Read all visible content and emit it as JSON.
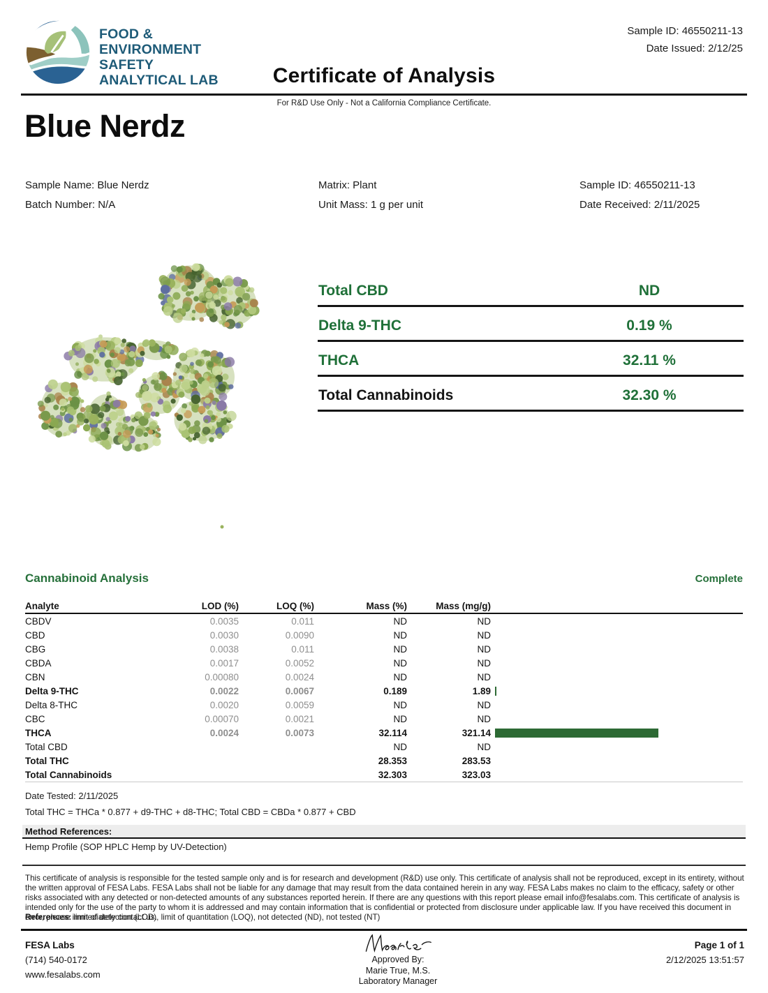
{
  "colors": {
    "accent_green": "#26703a",
    "bar_green": "#2d6a34",
    "logo_text_blue": "#1e5b78"
  },
  "header": {
    "sample_id": "Sample ID: 46550211-13",
    "date_issued": "Date Issued: 2/12/25",
    "title": "Certificate of Analysis",
    "subtitle": "For R&D Use Only - Not a California Compliance Certificate.",
    "logo_lines": [
      "FOOD &",
      "ENVIRONMENT",
      "SAFETY",
      "ANALYTICAL LAB"
    ]
  },
  "product_name": "Blue Nerdz",
  "sample_info": {
    "column1": [
      "Sample Name: Blue Nerdz",
      "Batch Number: N/A"
    ],
    "column2": [
      "Matrix: Plant",
      "Unit Mass: 1 g per unit"
    ],
    "column3": [
      "Sample ID: 46550211-13",
      "Date Received: 2/11/2025"
    ]
  },
  "summary": {
    "rows": [
      {
        "label": "Total CBD",
        "value": "ND"
      },
      {
        "label": "Delta 9-THC",
        "value": "0.19 %"
      },
      {
        "label": "THCA",
        "value": "32.11 %"
      },
      {
        "label": "Total Cannabinoids",
        "value": "32.30 %"
      }
    ]
  },
  "cannabinoid_table": {
    "section_title": "Cannabinoid Analysis",
    "status": "Complete",
    "headers": [
      "Analyte",
      "LOD (%)",
      "LOQ (%)",
      "Mass (%)",
      "Mass (mg/g)"
    ],
    "rows": [
      {
        "analyte": "CBDV",
        "lod": "0.0035",
        "loq": "0.011",
        "mass_pct": "ND",
        "mass_mgg": "ND",
        "bold": false,
        "bar": false
      },
      {
        "analyte": "CBD",
        "lod": "0.0030",
        "loq": "0.0090",
        "mass_pct": "ND",
        "mass_mgg": "ND",
        "bold": false,
        "bar": false
      },
      {
        "analyte": "CBG",
        "lod": "0.0038",
        "loq": "0.011",
        "mass_pct": "ND",
        "mass_mgg": "ND",
        "bold": false,
        "bar": false
      },
      {
        "analyte": "CBDA",
        "lod": "0.0017",
        "loq": "0.0052",
        "mass_pct": "ND",
        "mass_mgg": "ND",
        "bold": false,
        "bar": false
      },
      {
        "analyte": "CBN",
        "lod": "0.00080",
        "loq": "0.0024",
        "mass_pct": "ND",
        "mass_mgg": "ND",
        "bold": false,
        "bar": false
      },
      {
        "analyte": "Delta 9-THC",
        "lod": "0.0022",
        "loq": "0.0067",
        "mass_pct": "0.189",
        "mass_mgg": "1.89",
        "bold": true,
        "bar": true
      },
      {
        "analyte": "Delta 8-THC",
        "lod": "0.0020",
        "loq": "0.0059",
        "mass_pct": "ND",
        "mass_mgg": "ND",
        "bold": false,
        "bar": false
      },
      {
        "analyte": "CBC",
        "lod": "0.00070",
        "loq": "0.0021",
        "mass_pct": "ND",
        "mass_mgg": "ND",
        "bold": false,
        "bar": false
      },
      {
        "analyte": "THCA",
        "lod": "0.0024",
        "loq": "0.0073",
        "mass_pct": "32.114",
        "mass_mgg": "321.14",
        "bold": true,
        "bar": true
      },
      {
        "analyte": "Total CBD",
        "lod": "",
        "loq": "",
        "mass_pct": "ND",
        "mass_mgg": "ND",
        "bold": false,
        "bar": false
      },
      {
        "analyte": "Total THC",
        "lod": "",
        "loq": "",
        "mass_pct": "28.353",
        "mass_mgg": "283.53",
        "bold": true,
        "bar": false
      },
      {
        "analyte": "Total Cannabinoids",
        "lod": "",
        "loq": "",
        "mass_pct": "32.303",
        "mass_mgg": "323.03",
        "bold": true,
        "bar": false
      }
    ],
    "date_tested": "Date Tested: 2/11/2025",
    "formula": "Total THC = THCa * 0.877 + d9-THC + d8-THC; Total CBD = CBDa * 0.877 + CBD"
  },
  "method_references": {
    "title": "Method References:",
    "value": "Hemp Profile (SOP HPLC Hemp by UV-Detection)"
  },
  "disclaimer": "This certificate of analysis is responsible for the tested sample only and is for research and development (R&D) use only. This certificate of analysis shall not be reproduced, except in its entirety, without the written approval of FESA Labs. FESA Labs shall not be liable for any damage that may result from the data contained herein in any way. FESA Labs makes no claim to the efficacy, safety or other risks associated with any detected or non-detected amounts of any substances reported herein. If there are any questions with this report please email info@fesalabs.com. This certificate of analysis is intended only for the use of the party to whom it is addressed and may contain information that is confidential or protected from disclosure under applicable law. If you have received this document in error, please immediately contact us.",
  "references_line": {
    "bold_prefix": "References:",
    "text": " limit of detection (LOD), limit of quantitation (LOQ), not detected (ND), not tested (NT)"
  },
  "footer": {
    "lab_name": "FESA Labs",
    "phone": "(714) 540-0172",
    "website": "www.fesalabs.com",
    "signature_name": "Maries",
    "approved_by_label": "Approved By:",
    "approver": "Marie True, M.S.",
    "approver_title": "Laboratory Manager",
    "page": "Page 1 of 1",
    "timestamp": "2/12/2025 13:51:57"
  }
}
